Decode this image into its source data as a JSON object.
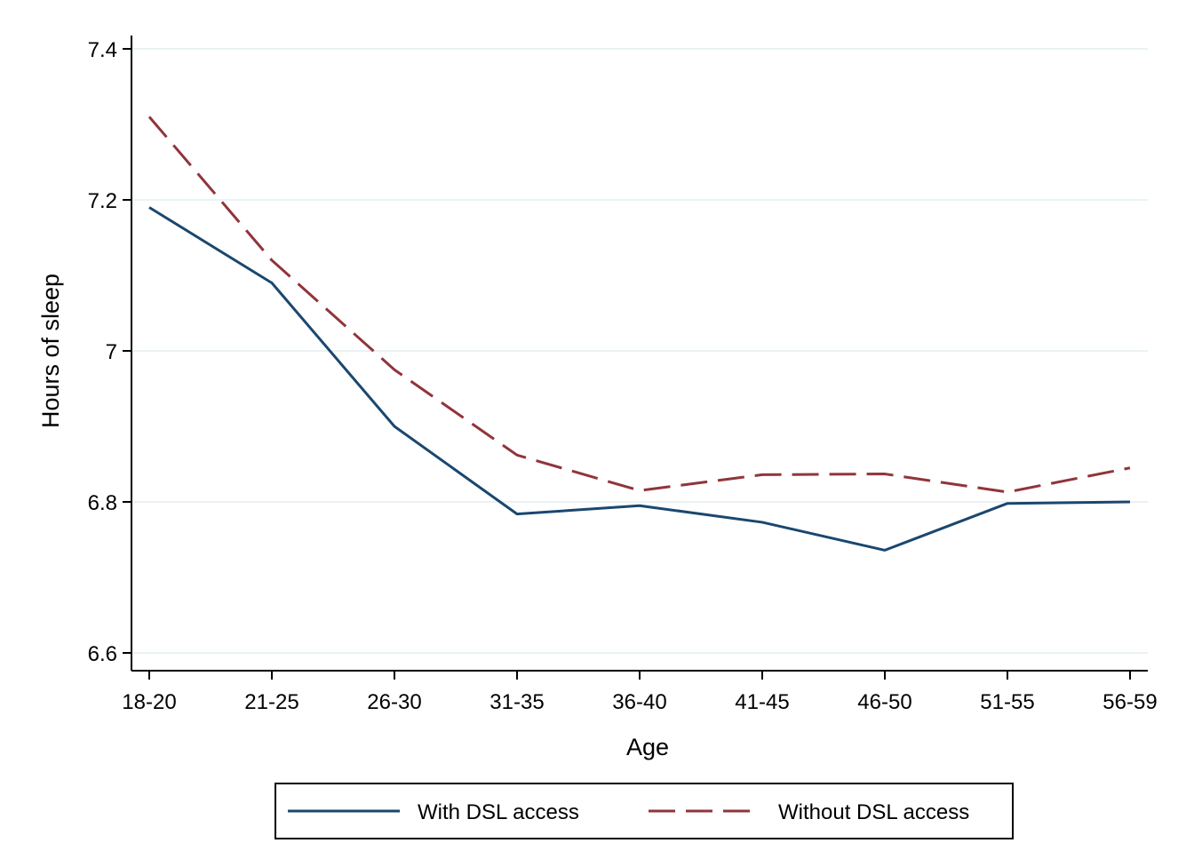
{
  "chart_data": {
    "type": "line",
    "title": "",
    "xlabel": "Age",
    "ylabel": "Hours of sleep",
    "categories": [
      "18-20",
      "21-25",
      "26-30",
      "31-35",
      "36-40",
      "41-45",
      "46-50",
      "51-55",
      "56-59"
    ],
    "ylim": [
      6.58,
      7.42
    ],
    "yticks": [
      6.6,
      6.8,
      7,
      7.2,
      7.4
    ],
    "ytick_labels": [
      "6.6",
      "6.8",
      "7",
      "7.2",
      "7.4"
    ],
    "grid": "horizontal",
    "legend_position": "bottom",
    "series": [
      {
        "name": "With DSL access",
        "color": "#1a476f",
        "style": "solid",
        "values": [
          7.19,
          7.09,
          6.9,
          6.784,
          6.795,
          6.773,
          6.736,
          6.798,
          6.8
        ]
      },
      {
        "name": "Without DSL access",
        "color": "#90353b",
        "style": "dashed",
        "values": [
          7.31,
          7.12,
          6.975,
          6.862,
          6.815,
          6.836,
          6.837,
          6.813,
          6.845
        ]
      }
    ]
  }
}
